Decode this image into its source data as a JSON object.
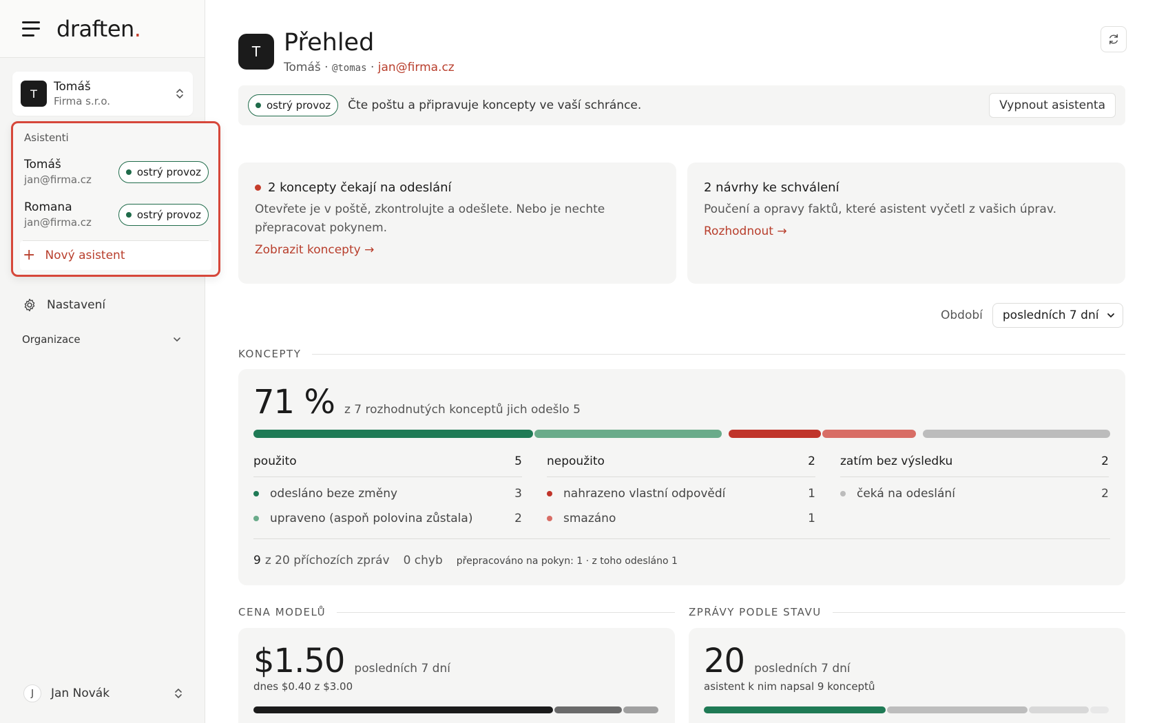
{
  "sidebar": {
    "brand": "draften",
    "brand_dot": ".",
    "account": {
      "avatar": "T",
      "name": "Tomáš",
      "org": "Firma s.r.o."
    },
    "dropdown": {
      "section_label": "Asistenti",
      "items": [
        {
          "name": "Tomáš",
          "email": "jan@firma.cz",
          "status": "ostrý provoz"
        },
        {
          "name": "Romana",
          "email": "jan@firma.cz",
          "status": "ostrý provoz"
        }
      ],
      "new_label": "Nový asistent"
    },
    "nav": {
      "settings": "Nastavení",
      "org": "Organizace"
    },
    "user": {
      "avatar": "J",
      "name": "Jan Novák"
    }
  },
  "header": {
    "avatar": "T",
    "title": "Přehled",
    "name": "Tomáš",
    "handle": "@tomas",
    "email": "jan@firma.cz",
    "sep": "·"
  },
  "status": {
    "pill": "ostrý provoz",
    "text": "Čte poštu a připravuje koncepty ve vaší schránce.",
    "button": "Vypnout asistenta"
  },
  "cards": {
    "drafts": {
      "title": "2 koncepty čekají na odeslání",
      "desc": "Otevřete je v poště, zkontrolujte a odešlete. Nebo je nechte přepracovat pokynem.",
      "link": "Zobrazit koncepty →"
    },
    "proposals": {
      "title": "2 návrhy ke schválení",
      "desc": "Poučení a opravy faktů, které asistent vyčetl z vašich úprav.",
      "link": "Rozhodnout →"
    }
  },
  "period": {
    "label": "Období",
    "value": "posledních 7 dní"
  },
  "koncepty": {
    "section": "KONCEPTY",
    "percent": "71 %",
    "summary": "z 7 rozhodnutých konceptů jich odešlo 5",
    "bar": [
      {
        "label": "odesláno beze změny",
        "value": 3,
        "color": "#1f7a55"
      },
      {
        "label": "upraveno (aspoň polovina zůstala)",
        "value": 2,
        "color": "#6aab8a"
      },
      {
        "label": "nahrazeno vlastní odpovědí",
        "value": 1,
        "color": "#c0342a"
      },
      {
        "label": "smazáno",
        "value": 1,
        "color": "#d86d65"
      },
      {
        "label": "čeká na odeslání",
        "value": 2,
        "color": "#bcbcbc"
      }
    ],
    "groups": [
      {
        "title": "použito",
        "total": "5",
        "rows": [
          {
            "label": "odesláno beze změny",
            "value": "3",
            "color": "#1f7a55"
          },
          {
            "label": "upraveno (aspoň polovina zůstala)",
            "value": "2",
            "color": "#6aab8a"
          }
        ]
      },
      {
        "title": "nepoužito",
        "total": "2",
        "rows": [
          {
            "label": "nahrazeno vlastní odpovědí",
            "value": "1",
            "color": "#c0342a"
          },
          {
            "label": "smazáno",
            "value": "1",
            "color": "#d86d65"
          }
        ]
      },
      {
        "title": "zatím bez výsledku",
        "total": "2",
        "rows": [
          {
            "label": "čeká na odeslání",
            "value": "2",
            "color": "#bcbcbc"
          }
        ]
      }
    ],
    "footer": {
      "count": "9",
      "count_rest": "z 20 příchozích zpráv",
      "errors": "0 chyb",
      "rework": "přepracováno na pokyn: 1 · z toho odesláno 1"
    }
  },
  "cena": {
    "section": "CENA MODELŮ",
    "value": "$1.50",
    "sub": "posledních 7 dní",
    "today": "dnes $0.40 z $3.00",
    "bar": [
      {
        "value": 0.74,
        "color": "#1b1b1b"
      },
      {
        "value": 0.17,
        "color": "#6a6a6a"
      },
      {
        "value": 0.09,
        "color": "#a0a0a0"
      }
    ]
  },
  "zpravy": {
    "section": "ZPRÁVY PODLE STAVU",
    "value": "20",
    "sub": "posledních 7 dní",
    "note": "asistent k nim napsal 9 konceptů",
    "bar": [
      {
        "value": 0.45,
        "color": "#1f7a55"
      },
      {
        "value": 0.35,
        "color": "#bdbdbd"
      },
      {
        "value": 0.15,
        "color": "#d8d8d8"
      },
      {
        "value": 0.05,
        "color": "#e8e8e8"
      }
    ]
  }
}
